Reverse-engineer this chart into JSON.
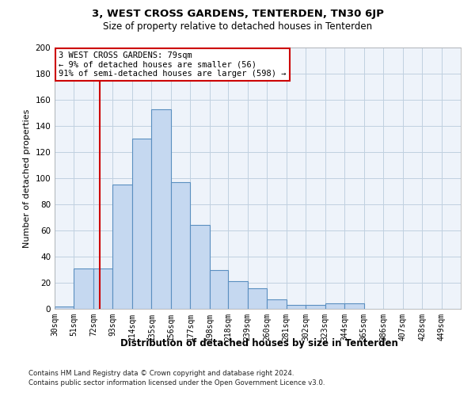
{
  "title": "3, WEST CROSS GARDENS, TENTERDEN, TN30 6JP",
  "subtitle": "Size of property relative to detached houses in Tenterden",
  "xlabel": "Distribution of detached houses by size in Tenterden",
  "ylabel": "Number of detached properties",
  "footer_line1": "Contains HM Land Registry data © Crown copyright and database right 2024.",
  "footer_line2": "Contains public sector information licensed under the Open Government Licence v3.0.",
  "bin_labels": [
    "30sqm",
    "51sqm",
    "72sqm",
    "93sqm",
    "114sqm",
    "135sqm",
    "156sqm",
    "177sqm",
    "198sqm",
    "218sqm",
    "239sqm",
    "260sqm",
    "281sqm",
    "302sqm",
    "323sqm",
    "344sqm",
    "365sqm",
    "386sqm",
    "407sqm",
    "428sqm",
    "449sqm"
  ],
  "bar_values": [
    2,
    31,
    31,
    95,
    130,
    153,
    97,
    64,
    30,
    21,
    16,
    7,
    3,
    3,
    4,
    4,
    0,
    0,
    0,
    0,
    0
  ],
  "bar_color": "#c5d8f0",
  "bar_edge_color": "#5a8fc0",
  "grid_color": "#c0d0e0",
  "background_color": "#eef3fa",
  "property_label": "3 WEST CROSS GARDENS: 79sqm",
  "annotation_line1": "← 9% of detached houses are smaller (56)",
  "annotation_line2": "91% of semi-detached houses are larger (598) →",
  "vline_color": "#cc0000",
  "annotation_box_color": "#ffffff",
  "annotation_box_edge_color": "#cc0000",
  "ylim": [
    0,
    200
  ],
  "yticks": [
    0,
    20,
    40,
    60,
    80,
    100,
    120,
    140,
    160,
    180,
    200
  ],
  "vline_x": 79,
  "bin_edges_sqm": [
    30,
    51,
    72,
    93,
    114,
    135,
    156,
    177,
    198,
    218,
    239,
    260,
    281,
    302,
    323,
    344,
    365,
    386,
    407,
    428,
    449,
    470
  ]
}
